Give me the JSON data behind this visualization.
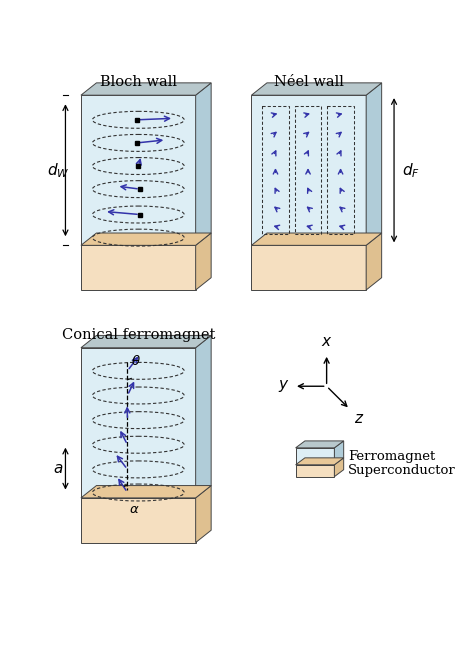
{
  "title_bloch": "Bloch wall",
  "title_neel": "Néel wall",
  "title_conical": "Conical ferromagnet",
  "label_dW": "$d_W$",
  "label_dF": "$d_F$",
  "label_a": "$a$",
  "label_theta": "$\\theta$",
  "label_alpha": "$\\alpha$",
  "label_x": "$x$",
  "label_y": "$y$",
  "label_z": "$z$",
  "legend_ferro": "Ferromagnet",
  "legend_sc": "Superconductor",
  "color_ferro_face": "#ddeef5",
  "color_ferro_side": "#b0ccd8",
  "color_ferro_top": "#c0d8e4",
  "color_sc_face": "#f5dfc0",
  "color_sc_side": "#dfc090",
  "color_sc_top": "#e8c898",
  "color_gray_top": "#b8c8cc",
  "color_gray_side": "#98b0b8",
  "color_arrow": "#3333aa",
  "color_black": "#000000",
  "background": "#ffffff"
}
